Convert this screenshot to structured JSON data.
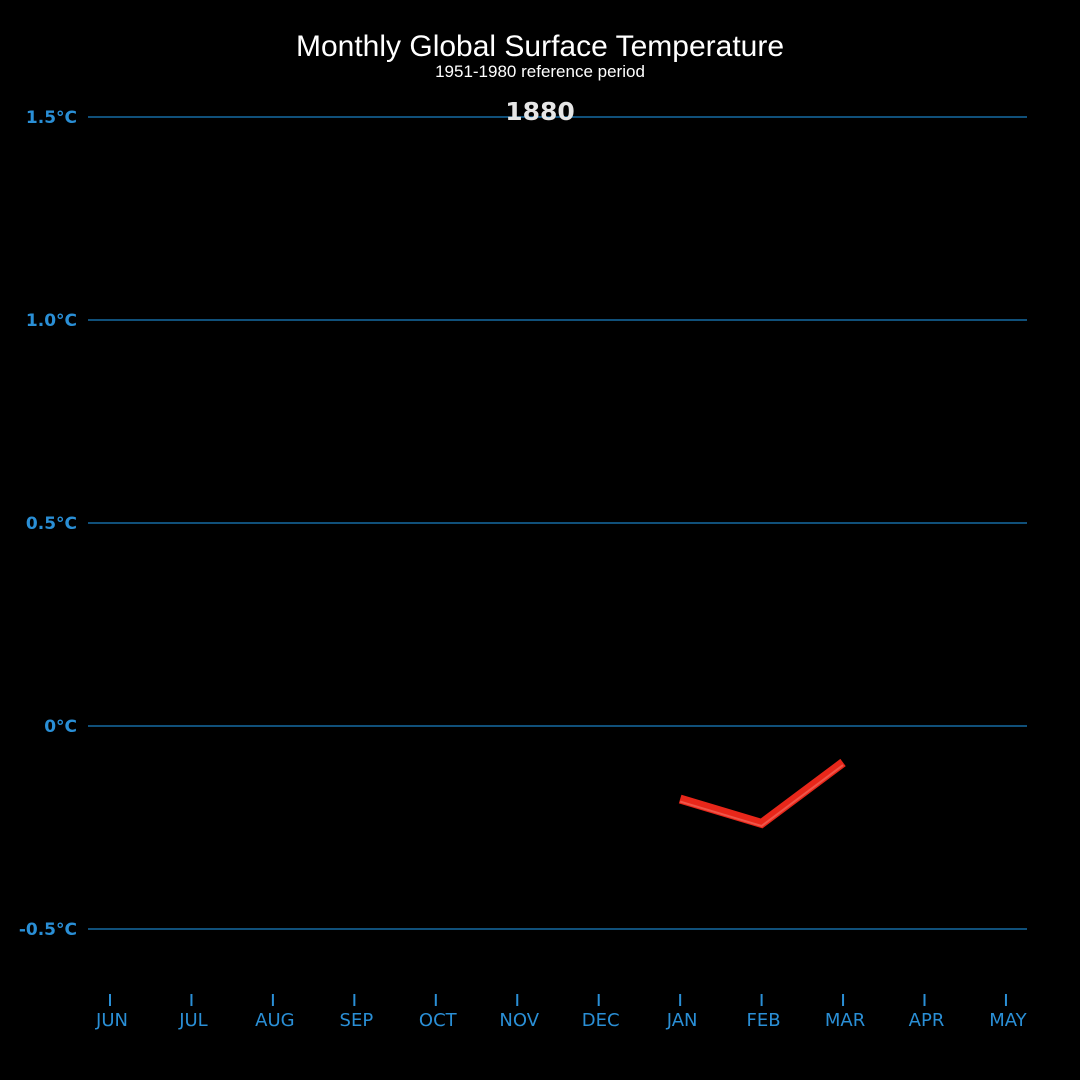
{
  "chart_data": {
    "type": "line",
    "title": "Monthly Global Surface Temperature",
    "subtitle": "1951-1980 reference period",
    "year": "1880",
    "categories": [
      "JUN",
      "JUL",
      "AUG",
      "SEP",
      "OCT",
      "NOV",
      "DEC",
      "JAN",
      "FEB",
      "MAR",
      "APR",
      "MAY"
    ],
    "y_ticks": [
      {
        "value": 1.5,
        "label": "1.5°C"
      },
      {
        "value": 1.0,
        "label": "1.0°C"
      },
      {
        "value": 0.5,
        "label": "0.5°C"
      },
      {
        "value": 0,
        "label": "0°C"
      },
      {
        "value": -0.5,
        "label": "-0.5°C"
      }
    ],
    "ylim": [
      -0.65,
      1.6
    ],
    "grid": true,
    "series": [
      {
        "x": [
          "JAN",
          "FEB",
          "MAR"
        ],
        "values": [
          -0.18,
          -0.24,
          -0.09
        ],
        "color": "#e8271a"
      }
    ]
  },
  "colors": {
    "background": "#000000",
    "grid": "#1a7fc4",
    "tick_label": "#2a8fd6",
    "line": "#e8271a",
    "line_highlight": "#f26a5e"
  }
}
